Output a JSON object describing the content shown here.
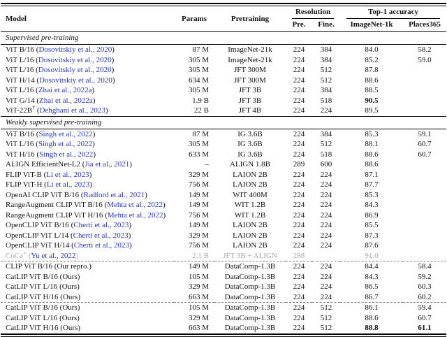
{
  "table": {
    "headers": {
      "model": "Model",
      "params": "Params",
      "pretraining": "Pretraining",
      "resolution_group": "Resolution",
      "pre": "Pre.",
      "fine": "Fine.",
      "top1_group": "Top-1 accuracy",
      "imagenet": "ImageNet-1k",
      "places": "Places365"
    },
    "colors": {
      "citation_blue": "#2435b5",
      "grayed_text": "#a8a8a8",
      "rule_black": "#000000",
      "dashed_gray": "#808080"
    },
    "sections": [
      {
        "title": "Supervised pre-training",
        "groups": [
          {
            "rows": [
              {
                "model": "ViT B/16",
                "cite": "Dosovitskiy et al., 2020",
                "params": "87 M",
                "pretraining": "ImageNet-21k",
                "pre": "224",
                "fine": "384",
                "in1k": "84.0",
                "places": "58.2"
              },
              {
                "model": "ViT L/16",
                "cite": "Dosovitskiy et al., 2020",
                "params": "305 M",
                "pretraining": "ImageNet-21k",
                "pre": "224",
                "fine": "384",
                "in1k": "85.2",
                "places": "59.0"
              },
              {
                "model": "ViT L/16",
                "cite": "Dosovitskiy et al., 2020",
                "params": "305 M",
                "pretraining": "JFT 300M",
                "pre": "224",
                "fine": "512",
                "in1k": "87.8",
                "places": ""
              },
              {
                "model": "ViT H/14",
                "cite": "Dosovitskiy et al., 2020",
                "params": "634 M",
                "pretraining": "JFT 300M",
                "pre": "224",
                "fine": "512",
                "in1k": "88.6",
                "places": ""
              },
              {
                "model": "ViT L/16",
                "cite": "Zhai et al., 2022a",
                "params": "305 M",
                "pretraining": "JFT 3B",
                "pre": "224",
                "fine": "384",
                "in1k": "88.5",
                "places": ""
              },
              {
                "model": "ViT G/14",
                "cite": "Zhai et al., 2022a",
                "params": "1.9 B",
                "pretraining": "JFT 3B",
                "pre": "224",
                "fine": "518",
                "in1k": "90.5",
                "in1k_bold": true,
                "places": ""
              },
              {
                "model": "ViT-22B",
                "sup": "†",
                "cite": "Dehghani et al., 2023",
                "params": "22 B",
                "pretraining": "JFT 4B",
                "pre": "224",
                "fine": "224",
                "in1k": "89.5",
                "places": ""
              }
            ]
          }
        ]
      },
      {
        "title": "Weakly supervised pre-training",
        "groups": [
          {
            "rows": [
              {
                "model": "ViT B/16",
                "cite": "Singh et al., 2022",
                "params": "87 M",
                "pretraining": "IG 3.6B",
                "pre": "224",
                "fine": "384",
                "in1k": "85.3",
                "places": "59.1"
              },
              {
                "model": "ViT L/16",
                "cite": "Singh et al., 2022",
                "params": "305 M",
                "pretraining": "IG 3.6B",
                "pre": "224",
                "fine": "512",
                "in1k": "88.1",
                "places": "60.7"
              },
              {
                "model": "ViT H/16",
                "cite": "Singh et al., 2022",
                "params": "633 M",
                "pretraining": "IG 3.6B",
                "pre": "224",
                "fine": "518",
                "in1k": "88.6",
                "places": "60.7"
              },
              {
                "model": "ALIGN EfficientNet-L2",
                "cite": "Jia et al., 2021",
                "params": "–",
                "pretraining": "ALIGN 1.8B",
                "pre": "289",
                "fine": "600",
                "in1k": "88.6",
                "places": ""
              },
              {
                "model": "FLIP ViT-B",
                "cite": "Li et al., 2023",
                "params": "329 M",
                "pretraining": "LAION 2B",
                "pre": "224",
                "fine": "224",
                "in1k": "87.1",
                "places": ""
              },
              {
                "model": "FLIP ViT-H",
                "cite": "Li et al., 2023",
                "params": "756 M",
                "pretraining": "LAION 2B",
                "pre": "224",
                "fine": "224",
                "in1k": "87.7",
                "places": ""
              },
              {
                "model": "OpenAI CLIP ViT B/16",
                "cite": "Radford et al., 2021",
                "params": "149 M",
                "pretraining": "WIT 400M",
                "pre": "224",
                "fine": "224",
                "in1k": "85.3",
                "places": ""
              },
              {
                "model": "RangeAugment CLIP ViT B/16",
                "cite": "Mehta et al., 2022",
                "params": "149 M",
                "pretraining": "WIT 1.2B",
                "pre": "224",
                "fine": "224",
                "in1k": "84.3",
                "places": ""
              },
              {
                "model": "RangeAugment CLIP ViT H/16",
                "cite": "Mehta et al., 2022",
                "params": "756 M",
                "pretraining": "WIT 1.2B",
                "pre": "224",
                "fine": "224",
                "in1k": "86.9",
                "places": ""
              },
              {
                "model": "OpenCLIP ViT B/16",
                "cite": "Cherti et al., 2023",
                "params": "149 M",
                "pretraining": "LAION 2B",
                "pre": "224",
                "fine": "224",
                "in1k": "85.5",
                "places": ""
              },
              {
                "model": "OpenCLIP ViT L/14",
                "cite": "Cherti et al., 2023",
                "params": "329 M",
                "pretraining": "LAION 2B",
                "pre": "224",
                "fine": "224",
                "in1k": "87.3",
                "places": ""
              },
              {
                "model": "OpenCLIP ViT H/14",
                "cite": "Cherti et al., 2023",
                "params": "756 M",
                "pretraining": "LAION 2B",
                "pre": "224",
                "fine": "224",
                "in1k": "87.6",
                "places": ""
              },
              {
                "model": "CoCa",
                "sup": "⋆",
                "cite": "Yu et al., 2022",
                "params": "2.1 B",
                "pretraining": "JFT 3B + ALIGN",
                "pre": "288",
                "fine": "",
                "in1k": "91.0",
                "places": "",
                "gray": true
              }
            ]
          },
          {
            "rows": [
              {
                "model": "CLIP ViT B/16",
                "note": "Our repro.",
                "params": "149 M",
                "pretraining": "DataComp-1.3B",
                "pre": "224",
                "fine": "224",
                "in1k": "84.4",
                "places": "58.4"
              },
              {
                "model": "CatLIP ViT B/16",
                "note": "Ours",
                "params": "105 M",
                "pretraining": "DataComp-1.3B",
                "pre": "224",
                "fine": "224",
                "in1k": "84.3",
                "places": "59.2"
              },
              {
                "model": "CatLIP ViT L/16",
                "note": "Ours",
                "params": "329 M",
                "pretraining": "DataComp-1.3B",
                "pre": "224",
                "fine": "224",
                "in1k": "86.5",
                "places": "60.3"
              },
              {
                "model": "CatLIP ViT H/16",
                "note": "Ours",
                "params": "663 M",
                "pretraining": "DataComp-1.3B",
                "pre": "224",
                "fine": "224",
                "in1k": "86.7",
                "places": "60.2"
              }
            ]
          },
          {
            "rows": [
              {
                "model": "CatLIP ViT B/16",
                "note": "Ours",
                "params": "105 M",
                "pretraining": "DataComp-1.3B",
                "pre": "224",
                "fine": "512",
                "in1k": "86.1",
                "places": "59.4"
              },
              {
                "model": "CatLIP ViT L/16",
                "note": "Ours",
                "params": "329 M",
                "pretraining": "DataComp-1.3B",
                "pre": "224",
                "fine": "512",
                "in1k": "88.6",
                "places": "60.7"
              },
              {
                "model": "CatLIP ViT H/16",
                "note": "Ours",
                "params": "663 M",
                "pretraining": "DataComp-1.3B",
                "pre": "224",
                "fine": "512",
                "in1k": "88.8",
                "in1k_bold": true,
                "places": "61.1",
                "places_bold": true
              }
            ]
          }
        ]
      }
    ]
  }
}
